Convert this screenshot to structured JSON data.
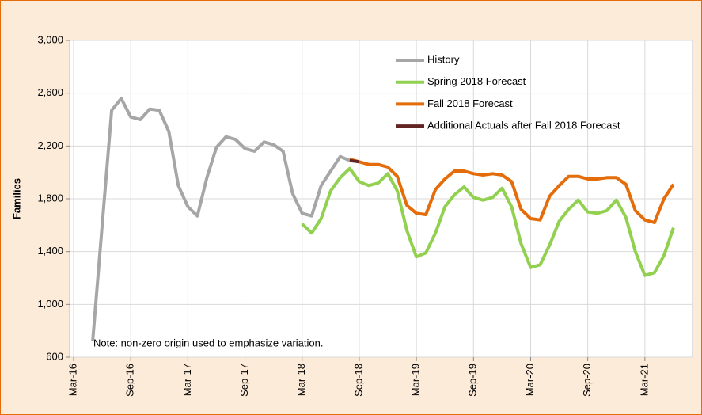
{
  "chart_data": {
    "type": "line",
    "y_label": "Families",
    "annotation": "Note: non-zero origin used to emphasize variation.",
    "categories": [
      "Mar-16",
      null,
      null,
      null,
      null,
      null,
      "Sep-16",
      null,
      null,
      null,
      null,
      null,
      "Mar-17",
      null,
      null,
      null,
      null,
      null,
      "Sep-17",
      null,
      null,
      null,
      null,
      null,
      "Mar-18",
      null,
      null,
      null,
      null,
      null,
      "Sep-18",
      null,
      null,
      null,
      null,
      null,
      "Mar-19",
      null,
      null,
      null,
      null,
      null,
      "Sep-19",
      null,
      null,
      null,
      null,
      null,
      "Mar-20",
      null,
      null,
      null,
      null,
      null,
      "Sep-20",
      null,
      null,
      null,
      null,
      null,
      "Mar-21",
      null,
      null,
      null
    ],
    "ylim": [
      600,
      3000
    ],
    "yticks": [
      {
        "value": 600,
        "label": "600"
      },
      {
        "value": 1000,
        "label": "1,000"
      },
      {
        "value": 1400,
        "label": "1,400"
      },
      {
        "value": 1800,
        "label": "1,800"
      },
      {
        "value": 2200,
        "label": "2,200"
      },
      {
        "value": 2600,
        "label": "2,600"
      },
      {
        "value": 3000,
        "label": "3,000"
      }
    ],
    "grid": true,
    "legend": "top-right",
    "series": [
      {
        "name": "History",
        "color": "#a6a6a6",
        "values": [
          null,
          null,
          720,
          1600,
          2470,
          2560,
          2420,
          2400,
          2480,
          2470,
          2310,
          1900,
          1740,
          1670,
          1960,
          2190,
          2270,
          2250,
          2180,
          2160,
          2230,
          2210,
          2160,
          1840,
          1690,
          1670,
          1900,
          2010,
          2120,
          2090,
          null,
          null,
          null,
          null,
          null,
          null,
          null,
          null,
          null,
          null,
          null,
          null,
          null,
          null,
          null,
          null,
          null,
          null,
          null,
          null,
          null,
          null,
          null,
          null,
          null,
          null,
          null,
          null,
          null,
          null,
          null,
          null,
          null,
          null
        ]
      },
      {
        "name": "Spring 2018 Forecast",
        "color": "#92d050",
        "values": [
          null,
          null,
          null,
          null,
          null,
          null,
          null,
          null,
          null,
          null,
          null,
          null,
          null,
          null,
          null,
          null,
          null,
          null,
          null,
          null,
          null,
          null,
          null,
          null,
          1610,
          1540,
          1650,
          1860,
          1960,
          2030,
          1930,
          1900,
          1920,
          1990,
          1860,
          1560,
          1360,
          1390,
          1540,
          1740,
          1830,
          1890,
          1810,
          1790,
          1810,
          1880,
          1740,
          1460,
          1280,
          1300,
          1450,
          1630,
          1720,
          1790,
          1700,
          1690,
          1710,
          1790,
          1660,
          1400,
          1220,
          1240,
          1370,
          1580
        ]
      },
      {
        "name": "Fall 2018 Forecast",
        "color": "#e46c0a",
        "values": [
          null,
          null,
          null,
          null,
          null,
          null,
          null,
          null,
          null,
          null,
          null,
          null,
          null,
          null,
          null,
          null,
          null,
          null,
          null,
          null,
          null,
          null,
          null,
          null,
          null,
          null,
          null,
          null,
          null,
          2100,
          2080,
          2060,
          2060,
          2040,
          1970,
          1750,
          1690,
          1680,
          1870,
          1950,
          2010,
          2010,
          1990,
          1980,
          1990,
          1980,
          1930,
          1720,
          1650,
          1640,
          1820,
          1900,
          1970,
          1970,
          1950,
          1950,
          1960,
          1960,
          1910,
          1710,
          1640,
          1620,
          1800,
          1910
        ]
      },
      {
        "name": "Additional Actuals after Fall 2018 Forecast",
        "color": "#632523",
        "values": [
          null,
          null,
          null,
          null,
          null,
          null,
          null,
          null,
          null,
          null,
          null,
          null,
          null,
          null,
          null,
          null,
          null,
          null,
          null,
          null,
          null,
          null,
          null,
          null,
          null,
          null,
          null,
          null,
          null,
          2090,
          2080,
          null,
          null,
          null,
          null,
          null,
          null,
          null,
          null,
          null,
          null,
          null,
          null,
          null,
          null,
          null,
          null,
          null,
          null,
          null,
          null,
          null,
          null,
          null,
          null,
          null,
          null,
          null,
          null,
          null,
          null,
          null,
          null,
          null
        ]
      }
    ]
  }
}
